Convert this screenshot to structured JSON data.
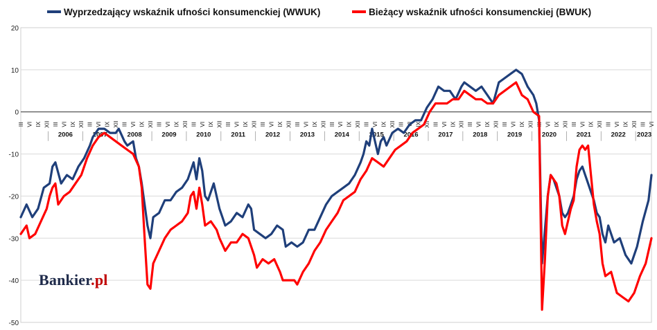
{
  "chart_data": {
    "type": "line",
    "title": "",
    "xlabel": "",
    "ylabel": "",
    "ylim": [
      -50,
      20
    ],
    "yticks": [
      20,
      10,
      0,
      -10,
      -20,
      -30,
      -40,
      -50
    ],
    "grid": true,
    "legend_position": "top",
    "month_ticks": [
      "III",
      "VI",
      "IX",
      "XII"
    ],
    "years": [
      "2006",
      "2007",
      "2008",
      "2009",
      "2010",
      "2011",
      "2012",
      "2013",
      "2014",
      "2015",
      "2016",
      "2017",
      "2018",
      "2019",
      "2020",
      "2021",
      "2022",
      "2023"
    ],
    "series": [
      {
        "name": "Wyprzedzający wskaźnik ufności konsumenckiej (WWUK)",
        "color": "#1f3f7a",
        "points": [
          [
            "2005-03",
            -25
          ],
          [
            "2005-05",
            -22
          ],
          [
            "2005-07",
            -25
          ],
          [
            "2005-09",
            -23
          ],
          [
            "2005-11",
            -18
          ],
          [
            "2006-01",
            -17
          ],
          [
            "2006-02",
            -13
          ],
          [
            "2006-03",
            -12
          ],
          [
            "2006-05",
            -17
          ],
          [
            "2006-07",
            -15
          ],
          [
            "2006-09",
            -16
          ],
          [
            "2006-11",
            -13
          ],
          [
            "2007-01",
            -11
          ],
          [
            "2007-03",
            -8
          ],
          [
            "2007-04",
            -6
          ],
          [
            "2007-06",
            -4
          ],
          [
            "2007-08",
            -4
          ],
          [
            "2007-10",
            -5
          ],
          [
            "2007-12",
            -5
          ],
          [
            "2008-01",
            -4
          ],
          [
            "2008-03",
            -7
          ],
          [
            "2008-04",
            -8
          ],
          [
            "2008-06",
            -7
          ],
          [
            "2008-07",
            -11
          ],
          [
            "2008-08",
            -13
          ],
          [
            "2008-09",
            -17
          ],
          [
            "2008-10",
            -22
          ],
          [
            "2008-11",
            -27
          ],
          [
            "2008-12",
            -30
          ],
          [
            "2009-01",
            -25
          ],
          [
            "2009-03",
            -24
          ],
          [
            "2009-05",
            -21
          ],
          [
            "2009-07",
            -21
          ],
          [
            "2009-09",
            -19
          ],
          [
            "2009-11",
            -18
          ],
          [
            "2010-01",
            -16
          ],
          [
            "2010-02",
            -14
          ],
          [
            "2010-03",
            -12
          ],
          [
            "2010-04",
            -16
          ],
          [
            "2010-05",
            -11
          ],
          [
            "2010-06",
            -14
          ],
          [
            "2010-07",
            -20
          ],
          [
            "2010-08",
            -21
          ],
          [
            "2010-10",
            -17
          ],
          [
            "2010-12",
            -23
          ],
          [
            "2011-01",
            -25
          ],
          [
            "2011-02",
            -27
          ],
          [
            "2011-04",
            -26
          ],
          [
            "2011-06",
            -24
          ],
          [
            "2011-08",
            -25
          ],
          [
            "2011-10",
            -22
          ],
          [
            "2011-11",
            -23
          ],
          [
            "2011-12",
            -28
          ],
          [
            "2012-02",
            -29
          ],
          [
            "2012-04",
            -30
          ],
          [
            "2012-06",
            -29
          ],
          [
            "2012-08",
            -27
          ],
          [
            "2012-10",
            -28
          ],
          [
            "2012-11",
            -32
          ],
          [
            "2013-01",
            -31
          ],
          [
            "2013-03",
            -32
          ],
          [
            "2013-05",
            -31
          ],
          [
            "2013-07",
            -28
          ],
          [
            "2013-09",
            -28
          ],
          [
            "2013-11",
            -25
          ],
          [
            "2014-01",
            -22
          ],
          [
            "2014-03",
            -20
          ],
          [
            "2014-05",
            -19
          ],
          [
            "2014-07",
            -18
          ],
          [
            "2014-09",
            -17
          ],
          [
            "2014-11",
            -15
          ],
          [
            "2015-01",
            -12
          ],
          [
            "2015-02",
            -10
          ],
          [
            "2015-03",
            -7
          ],
          [
            "2015-04",
            -8
          ],
          [
            "2015-05",
            -4
          ],
          [
            "2015-06",
            -7
          ],
          [
            "2015-07",
            -10
          ],
          [
            "2015-08",
            -7
          ],
          [
            "2015-09",
            -6
          ],
          [
            "2015-10",
            -8
          ],
          [
            "2015-12",
            -5
          ],
          [
            "2016-02",
            -4
          ],
          [
            "2016-04",
            -5
          ],
          [
            "2016-06",
            -3
          ],
          [
            "2016-08",
            -2
          ],
          [
            "2016-10",
            -2
          ],
          [
            "2016-12",
            1
          ],
          [
            "2017-02",
            3
          ],
          [
            "2017-04",
            6
          ],
          [
            "2017-06",
            5
          ],
          [
            "2017-08",
            5
          ],
          [
            "2017-10",
            3
          ],
          [
            "2017-12",
            6
          ],
          [
            "2018-01",
            7
          ],
          [
            "2018-03",
            6
          ],
          [
            "2018-05",
            5
          ],
          [
            "2018-07",
            6
          ],
          [
            "2018-09",
            4
          ],
          [
            "2018-11",
            2
          ],
          [
            "2019-01",
            7
          ],
          [
            "2019-03",
            8
          ],
          [
            "2019-05",
            9
          ],
          [
            "2019-07",
            10
          ],
          [
            "2019-09",
            9
          ],
          [
            "2019-11",
            6
          ],
          [
            "2020-01",
            4
          ],
          [
            "2020-02",
            2
          ],
          [
            "2020-03",
            -2
          ],
          [
            "2020-04",
            -36
          ],
          [
            "2020-05",
            -28
          ],
          [
            "2020-06",
            -20
          ],
          [
            "2020-07",
            -15
          ],
          [
            "2020-08",
            -16
          ],
          [
            "2020-09",
            -18
          ],
          [
            "2020-10",
            -20
          ],
          [
            "2020-11",
            -24
          ],
          [
            "2020-12",
            -25
          ],
          [
            "2021-01",
            -24
          ],
          [
            "2021-02",
            -22
          ],
          [
            "2021-03",
            -20
          ],
          [
            "2021-04",
            -16
          ],
          [
            "2021-05",
            -14
          ],
          [
            "2021-06",
            -13
          ],
          [
            "2021-07",
            -15
          ],
          [
            "2021-08",
            -17
          ],
          [
            "2021-09",
            -19
          ],
          [
            "2021-10",
            -21
          ],
          [
            "2021-11",
            -24
          ],
          [
            "2021-12",
            -25
          ],
          [
            "2022-01",
            -29
          ],
          [
            "2022-02",
            -31
          ],
          [
            "2022-03",
            -27
          ],
          [
            "2022-05",
            -31
          ],
          [
            "2022-07",
            -30
          ],
          [
            "2022-09",
            -34
          ],
          [
            "2022-11",
            -36
          ],
          [
            "2023-01",
            -32
          ],
          [
            "2023-03",
            -26
          ],
          [
            "2023-05",
            -21
          ],
          [
            "2023-06",
            -15
          ]
        ]
      },
      {
        "name": "Bieżący wskaźnik ufności konsumenckiej (BWUK)",
        "color": "#ff0000",
        "points": [
          [
            "2005-03",
            -29
          ],
          [
            "2005-05",
            -27
          ],
          [
            "2005-06",
            -30
          ],
          [
            "2005-08",
            -29
          ],
          [
            "2005-10",
            -26
          ],
          [
            "2005-12",
            -23
          ],
          [
            "2006-01",
            -20
          ],
          [
            "2006-02",
            -18
          ],
          [
            "2006-03",
            -17
          ],
          [
            "2006-04",
            -22
          ],
          [
            "2006-06",
            -20
          ],
          [
            "2006-08",
            -19
          ],
          [
            "2006-10",
            -17
          ],
          [
            "2006-12",
            -15
          ],
          [
            "2007-02",
            -11
          ],
          [
            "2007-04",
            -8
          ],
          [
            "2007-06",
            -6
          ],
          [
            "2007-08",
            -5
          ],
          [
            "2007-10",
            -6
          ],
          [
            "2007-12",
            -7
          ],
          [
            "2008-02",
            -8
          ],
          [
            "2008-04",
            -9
          ],
          [
            "2008-06",
            -10
          ],
          [
            "2008-08",
            -13
          ],
          [
            "2008-09",
            -18
          ],
          [
            "2008-10",
            -30
          ],
          [
            "2008-11",
            -41
          ],
          [
            "2008-12",
            -42
          ],
          [
            "2009-01",
            -36
          ],
          [
            "2009-03",
            -33
          ],
          [
            "2009-05",
            -30
          ],
          [
            "2009-07",
            -28
          ],
          [
            "2009-09",
            -27
          ],
          [
            "2009-11",
            -26
          ],
          [
            "2010-01",
            -24
          ],
          [
            "2010-02",
            -20
          ],
          [
            "2010-03",
            -19
          ],
          [
            "2010-04",
            -23
          ],
          [
            "2010-05",
            -18
          ],
          [
            "2010-06",
            -22
          ],
          [
            "2010-07",
            -27
          ],
          [
            "2010-09",
            -26
          ],
          [
            "2010-11",
            -28
          ],
          [
            "2010-12",
            -30
          ],
          [
            "2011-02",
            -33
          ],
          [
            "2011-04",
            -31
          ],
          [
            "2011-06",
            -31
          ],
          [
            "2011-08",
            -29
          ],
          [
            "2011-10",
            -30
          ],
          [
            "2011-12",
            -34
          ],
          [
            "2012-01",
            -37
          ],
          [
            "2012-03",
            -35
          ],
          [
            "2012-05",
            -36
          ],
          [
            "2012-07",
            -35
          ],
          [
            "2012-09",
            -38
          ],
          [
            "2012-10",
            -40
          ],
          [
            "2012-12",
            -40
          ],
          [
            "2013-02",
            -40
          ],
          [
            "2013-03",
            -41
          ],
          [
            "2013-05",
            -38
          ],
          [
            "2013-07",
            -36
          ],
          [
            "2013-09",
            -33
          ],
          [
            "2013-11",
            -31
          ],
          [
            "2014-01",
            -28
          ],
          [
            "2014-03",
            -26
          ],
          [
            "2014-05",
            -24
          ],
          [
            "2014-07",
            -21
          ],
          [
            "2014-09",
            -20
          ],
          [
            "2014-11",
            -19
          ],
          [
            "2015-01",
            -16
          ],
          [
            "2015-03",
            -14
          ],
          [
            "2015-05",
            -11
          ],
          [
            "2015-07",
            -12
          ],
          [
            "2015-09",
            -13
          ],
          [
            "2015-11",
            -11
          ],
          [
            "2016-01",
            -9
          ],
          [
            "2016-03",
            -8
          ],
          [
            "2016-05",
            -7
          ],
          [
            "2016-07",
            -5
          ],
          [
            "2016-09",
            -4
          ],
          [
            "2016-11",
            -3
          ],
          [
            "2017-01",
            0
          ],
          [
            "2017-03",
            2
          ],
          [
            "2017-05",
            2
          ],
          [
            "2017-07",
            2
          ],
          [
            "2017-09",
            3
          ],
          [
            "2017-11",
            3
          ],
          [
            "2018-01",
            5
          ],
          [
            "2018-03",
            4
          ],
          [
            "2018-05",
            3
          ],
          [
            "2018-07",
            3
          ],
          [
            "2018-09",
            2
          ],
          [
            "2018-11",
            2
          ],
          [
            "2019-01",
            4
          ],
          [
            "2019-03",
            5
          ],
          [
            "2019-05",
            6
          ],
          [
            "2019-07",
            7
          ],
          [
            "2019-09",
            4
          ],
          [
            "2019-11",
            3
          ],
          [
            "2020-01",
            0
          ],
          [
            "2020-03",
            -1
          ],
          [
            "2020-04",
            -47
          ],
          [
            "2020-05",
            -35
          ],
          [
            "2020-06",
            -20
          ],
          [
            "2020-07",
            -15
          ],
          [
            "2020-08",
            -16
          ],
          [
            "2020-09",
            -17
          ],
          [
            "2020-10",
            -20
          ],
          [
            "2020-11",
            -27
          ],
          [
            "2020-12",
            -29
          ],
          [
            "2021-01",
            -26
          ],
          [
            "2021-02",
            -23
          ],
          [
            "2021-03",
            -21
          ],
          [
            "2021-04",
            -13
          ],
          [
            "2021-05",
            -9
          ],
          [
            "2021-06",
            -8
          ],
          [
            "2021-07",
            -9
          ],
          [
            "2021-08",
            -8
          ],
          [
            "2021-09",
            -15
          ],
          [
            "2021-10",
            -22
          ],
          [
            "2021-11",
            -26
          ],
          [
            "2021-12",
            -29
          ],
          [
            "2022-01",
            -36
          ],
          [
            "2022-02",
            -39
          ],
          [
            "2022-04",
            -38
          ],
          [
            "2022-06",
            -43
          ],
          [
            "2022-08",
            -44
          ],
          [
            "2022-10",
            -45
          ],
          [
            "2022-12",
            -43
          ],
          [
            "2023-02",
            -39
          ],
          [
            "2023-04",
            -36
          ],
          [
            "2023-06",
            -30
          ]
        ]
      }
    ]
  },
  "branding": {
    "logo_text": "Bankier",
    "logo_suffix": ".pl"
  }
}
